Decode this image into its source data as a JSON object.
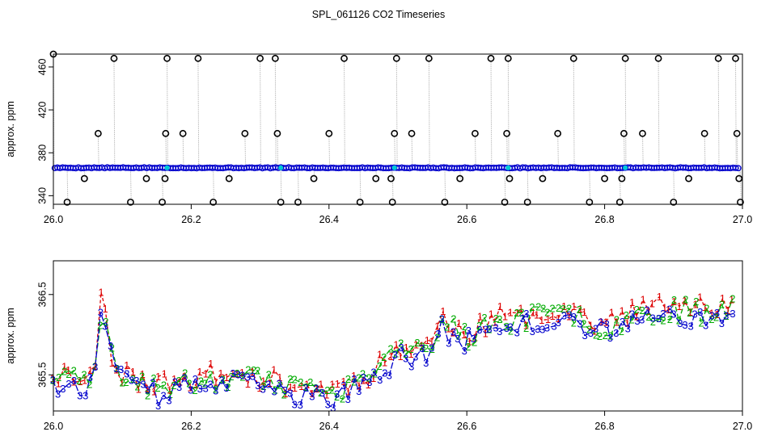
{
  "title": "SPL_061126  CO2 Timeseries",
  "colors": {
    "frame": "#000000",
    "vline": "#b0b0b0",
    "series1": "#dd0000",
    "series2": "#00aa00",
    "series3": "#0000cc",
    "cyan": "#00c8d8",
    "marker": "#000000"
  },
  "chart_data": [
    {
      "type": "scatter",
      "name": "top-panel",
      "title": "",
      "xlabel": "",
      "ylabel": "approx. ppm",
      "xlim": [
        26.0,
        27.0
      ],
      "ylim": [
        332,
        472
      ],
      "xticks": [
        26.0,
        26.2,
        26.4,
        26.6,
        26.8,
        27.0
      ],
      "xtick_labels": [
        "26.0",
        "26.2",
        "26.4",
        "26.6",
        "26.8",
        "27.0"
      ],
      "yticks": [
        340,
        380,
        420,
        460
      ],
      "ytick_labels": [
        "340",
        "380",
        "420",
        "460"
      ],
      "baseline": 366,
      "outliers": [
        {
          "x": 26.0,
          "y": 472
        },
        {
          "x": 26.02,
          "y": 334
        },
        {
          "x": 26.045,
          "y": 356
        },
        {
          "x": 26.065,
          "y": 398
        },
        {
          "x": 26.088,
          "y": 468
        },
        {
          "x": 26.112,
          "y": 334
        },
        {
          "x": 26.135,
          "y": 356
        },
        {
          "x": 26.158,
          "y": 334
        },
        {
          "x": 26.162,
          "y": 356
        },
        {
          "x": 26.163,
          "y": 398
        },
        {
          "x": 26.165,
          "y": 468
        },
        {
          "x": 26.188,
          "y": 398
        },
        {
          "x": 26.21,
          "y": 468
        },
        {
          "x": 26.232,
          "y": 334
        },
        {
          "x": 26.255,
          "y": 356
        },
        {
          "x": 26.278,
          "y": 398
        },
        {
          "x": 26.3,
          "y": 468
        },
        {
          "x": 26.322,
          "y": 468
        },
        {
          "x": 26.325,
          "y": 398
        },
        {
          "x": 26.33,
          "y": 334
        },
        {
          "x": 26.355,
          "y": 334
        },
        {
          "x": 26.378,
          "y": 356
        },
        {
          "x": 26.4,
          "y": 398
        },
        {
          "x": 26.422,
          "y": 468
        },
        {
          "x": 26.445,
          "y": 334
        },
        {
          "x": 26.468,
          "y": 356
        },
        {
          "x": 26.49,
          "y": 356
        },
        {
          "x": 26.492,
          "y": 334
        },
        {
          "x": 26.495,
          "y": 398
        },
        {
          "x": 26.498,
          "y": 468
        },
        {
          "x": 26.52,
          "y": 398
        },
        {
          "x": 26.545,
          "y": 468
        },
        {
          "x": 26.568,
          "y": 334
        },
        {
          "x": 26.59,
          "y": 356
        },
        {
          "x": 26.612,
          "y": 398
        },
        {
          "x": 26.635,
          "y": 468
        },
        {
          "x": 26.655,
          "y": 334
        },
        {
          "x": 26.658,
          "y": 398
        },
        {
          "x": 26.66,
          "y": 468
        },
        {
          "x": 26.662,
          "y": 356
        },
        {
          "x": 26.688,
          "y": 334
        },
        {
          "x": 26.71,
          "y": 356
        },
        {
          "x": 26.732,
          "y": 398
        },
        {
          "x": 26.755,
          "y": 468
        },
        {
          "x": 26.778,
          "y": 334
        },
        {
          "x": 26.8,
          "y": 356
        },
        {
          "x": 26.822,
          "y": 334
        },
        {
          "x": 26.825,
          "y": 356
        },
        {
          "x": 26.828,
          "y": 398
        },
        {
          "x": 26.83,
          "y": 468
        },
        {
          "x": 26.855,
          "y": 398
        },
        {
          "x": 26.878,
          "y": 468
        },
        {
          "x": 26.9,
          "y": 334
        },
        {
          "x": 26.922,
          "y": 356
        },
        {
          "x": 26.945,
          "y": 398
        },
        {
          "x": 26.965,
          "y": 468
        },
        {
          "x": 26.99,
          "y": 468
        },
        {
          "x": 26.992,
          "y": 398
        },
        {
          "x": 26.995,
          "y": 356
        },
        {
          "x": 26.997,
          "y": 334
        }
      ],
      "cyan_points": [
        26.165,
        26.33,
        26.495,
        26.66,
        26.83
      ]
    },
    {
      "type": "line",
      "name": "bottom-panel",
      "title": "",
      "xlabel": "",
      "ylabel": "approx. ppm",
      "xlim": [
        26.0,
        27.0
      ],
      "ylim": [
        365.05,
        366.92
      ],
      "xticks": [
        26.0,
        26.2,
        26.4,
        26.6,
        26.8,
        27.0
      ],
      "xtick_labels": [
        "26.0",
        "26.2",
        "26.4",
        "26.6",
        "26.8",
        "27.0"
      ],
      "yticks": [
        365.5,
        366.5
      ],
      "ytick_labels": [
        "365.5",
        "366.5"
      ],
      "knots_x": [
        26.0,
        26.05,
        26.065,
        26.07,
        26.075,
        26.085,
        26.1,
        26.15,
        26.2,
        26.25,
        26.3,
        26.35,
        26.4,
        26.45,
        26.5,
        26.55,
        26.57,
        26.575,
        26.58,
        26.6,
        26.65,
        26.7,
        26.75,
        26.8,
        26.85,
        26.9,
        26.95,
        26.99
      ],
      "knots_y": [
        365.45,
        365.4,
        365.6,
        366.65,
        366.2,
        365.7,
        365.45,
        365.3,
        365.4,
        365.45,
        365.4,
        365.3,
        365.25,
        365.4,
        365.75,
        365.85,
        366.25,
        365.8,
        366.1,
        365.95,
        366.15,
        366.2,
        366.25,
        366.05,
        366.25,
        366.3,
        366.25,
        366.4
      ],
      "series": [
        {
          "name": "1",
          "label": "1",
          "offset": 0.07,
          "seed": 11
        },
        {
          "name": "2",
          "label": "2",
          "offset": 0.02,
          "seed": 23
        },
        {
          "name": "3",
          "label": "3",
          "offset": -0.05,
          "seed": 37
        }
      ],
      "points_per_series": 130
    }
  ]
}
